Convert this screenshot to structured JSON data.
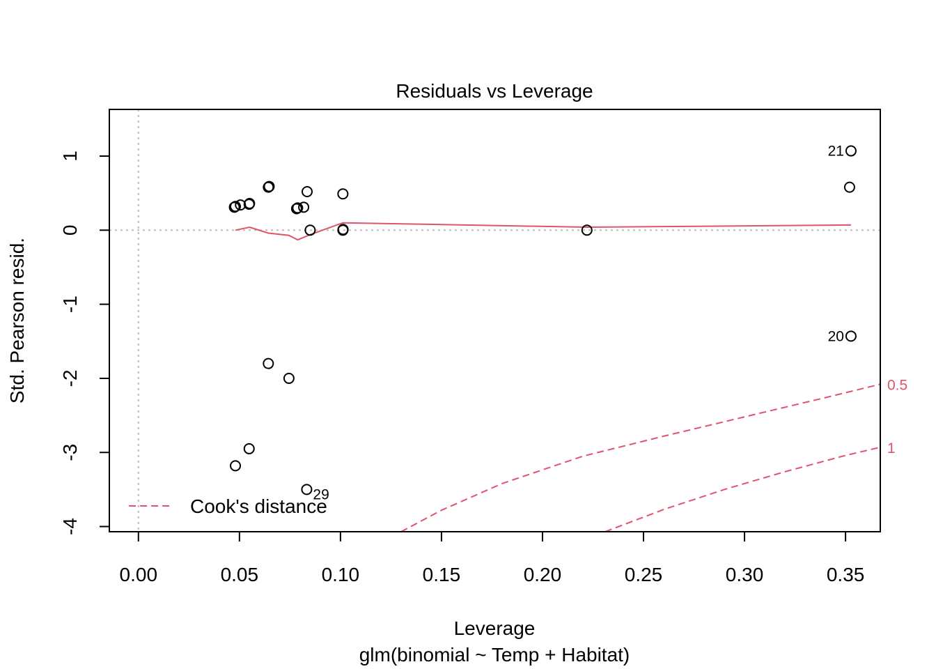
{
  "chart_data": {
    "type": "scatter",
    "title": "Residuals vs Leverage",
    "xlabel": "Leverage",
    "subtitle": "glm(binomial ~ Temp + Habitat)",
    "ylabel": "Std. Pearson resid.",
    "xlim": [
      -0.0144,
      0.3672
    ],
    "ylim": [
      -4.07,
      1.63
    ],
    "x_ticks": [
      "0.00",
      "0.05",
      "0.10",
      "0.15",
      "0.20",
      "0.25",
      "0.30",
      "0.35"
    ],
    "x_tick_values": [
      0,
      0.05,
      0.1,
      0.15,
      0.2,
      0.25,
      0.3,
      0.35
    ],
    "y_ticks": [
      "-4",
      "-3",
      "-2",
      "-1",
      "0",
      "1"
    ],
    "y_tick_values": [
      -4,
      -3,
      -2,
      -1,
      0,
      1
    ],
    "points": [
      {
        "x": 0.0475,
        "y": 0.31
      },
      {
        "x": 0.048,
        "y": 0.32
      },
      {
        "x": 0.0505,
        "y": 0.34
      },
      {
        "x": 0.055,
        "y": 0.36
      },
      {
        "x": 0.0548,
        "y": 0.35
      },
      {
        "x": 0.0643,
        "y": 0.58
      },
      {
        "x": 0.0647,
        "y": 0.59
      },
      {
        "x": 0.0783,
        "y": 0.29
      },
      {
        "x": 0.0788,
        "y": 0.3
      },
      {
        "x": 0.0818,
        "y": 0.31
      },
      {
        "x": 0.0835,
        "y": 0.52
      },
      {
        "x": 0.085,
        "y": 0.0
      },
      {
        "x": 0.1012,
        "y": 0.49
      },
      {
        "x": 0.1012,
        "y": 0.0
      },
      {
        "x": 0.1013,
        "y": 0.01
      },
      {
        "x": 0.222,
        "y": 0.0
      },
      {
        "x": 0.3527,
        "y": 1.07,
        "label": "21"
      },
      {
        "x": 0.352,
        "y": 0.58
      },
      {
        "x": 0.3527,
        "y": -1.43,
        "label": "20"
      },
      {
        "x": 0.0643,
        "y": -1.8
      },
      {
        "x": 0.0745,
        "y": -2.0
      },
      {
        "x": 0.0548,
        "y": -2.95
      },
      {
        "x": 0.048,
        "y": -3.18
      },
      {
        "x": 0.0833,
        "y": -3.5,
        "label": "29"
      }
    ],
    "smooth_line": {
      "x": [
        0.048,
        0.055,
        0.0643,
        0.0745,
        0.0788,
        0.0833,
        0.085,
        0.1012,
        0.222,
        0.3527
      ],
      "y": [
        0.0,
        0.04,
        -0.04,
        -0.07,
        -0.13,
        -0.08,
        -0.06,
        0.1,
        0.04,
        0.07
      ]
    },
    "cooks_contours": [
      {
        "label": "0.5",
        "x": [
          0.13,
          0.15,
          0.18,
          0.22,
          0.26,
          0.3,
          0.34,
          0.3672
        ],
        "y": [
          -4.07,
          -3.78,
          -3.42,
          -3.05,
          -2.78,
          -2.52,
          -2.26,
          -2.08
        ]
      },
      {
        "label": "1",
        "x": [
          0.231,
          0.26,
          0.29,
          0.32,
          0.35,
          0.3672
        ],
        "y": [
          -4.07,
          -3.77,
          -3.5,
          -3.26,
          -3.04,
          -2.93
        ]
      }
    ],
    "legend": {
      "label": "Cook's distance",
      "position": "bottom-left"
    },
    "reference_lines": {
      "h": 0,
      "v": 0
    },
    "colors": {
      "points": "#000000",
      "smooth": "#DF536B",
      "cook": "#DF536B",
      "reference": "#BEBEBE"
    }
  }
}
